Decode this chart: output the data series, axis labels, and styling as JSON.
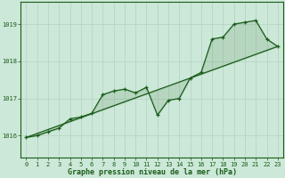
{
  "title": "Graphe pression niveau de la mer (hPa)",
  "background_color": "#cce8d8",
  "grid_color": "#b8d4c4",
  "line_color": "#1a5c1a",
  "xlim": [
    -0.5,
    23.5
  ],
  "ylim": [
    1015.4,
    1019.6
  ],
  "yticks": [
    1016,
    1017,
    1018,
    1019
  ],
  "xticks": [
    0,
    1,
    2,
    3,
    4,
    5,
    6,
    7,
    8,
    9,
    10,
    11,
    12,
    13,
    14,
    15,
    16,
    17,
    18,
    19,
    20,
    21,
    22,
    23
  ],
  "data_x": [
    0,
    1,
    2,
    3,
    4,
    5,
    6,
    7,
    8,
    9,
    10,
    11,
    12,
    13,
    14,
    15,
    16,
    17,
    18,
    19,
    20,
    21,
    22,
    23
  ],
  "data_y": [
    1015.95,
    1016.0,
    1016.1,
    1016.2,
    1016.45,
    1016.5,
    1016.6,
    1017.1,
    1017.2,
    1017.25,
    1017.15,
    1017.3,
    1016.55,
    1016.95,
    1017.0,
    1017.55,
    1017.7,
    1018.6,
    1018.65,
    1019.0,
    1019.05,
    1019.1,
    1018.6,
    1018.4
  ],
  "trend_x": [
    0,
    23
  ],
  "trend_y": [
    1015.95,
    1018.4
  ],
  "xlabel_fontsize": 6.0,
  "tick_fontsize": 5.0
}
